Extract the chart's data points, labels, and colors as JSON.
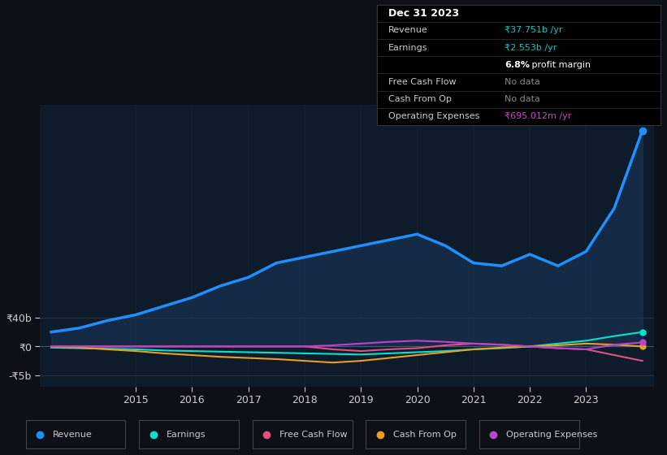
{
  "bg_color": "#0d1117",
  "plot_bg_color": "#0d1b2a",
  "grid_color": "#2a3a4a",
  "x_years": [
    2013.5,
    2014.0,
    2014.5,
    2015.0,
    2015.5,
    2016.0,
    2016.5,
    2017.0,
    2017.5,
    2018.0,
    2018.5,
    2019.0,
    2019.5,
    2020.0,
    2020.5,
    2021.0,
    2021.5,
    2022.0,
    2022.5,
    2023.0,
    2023.5,
    2024.0
  ],
  "revenue": [
    2.5,
    3.2,
    4.5,
    5.5,
    7.0,
    8.5,
    10.5,
    12.0,
    14.5,
    15.5,
    16.5,
    17.5,
    18.5,
    19.5,
    17.5,
    14.5,
    14.0,
    16.0,
    14.0,
    16.5,
    24.0,
    37.5
  ],
  "earnings": [
    -0.2,
    -0.3,
    -0.4,
    -0.5,
    -0.7,
    -0.8,
    -0.9,
    -1.0,
    -1.1,
    -1.2,
    -1.3,
    -1.4,
    -1.2,
    -1.0,
    -0.8,
    -0.5,
    -0.3,
    0.0,
    0.5,
    1.0,
    1.8,
    2.5
  ],
  "free_cash_flow": [
    0.0,
    0.0,
    0.0,
    0.0,
    0.0,
    0.0,
    0.0,
    0.0,
    0.0,
    0.0,
    -0.5,
    -0.8,
    -0.5,
    -0.3,
    0.2,
    0.5,
    0.3,
    0.0,
    -0.3,
    -0.5,
    -1.5,
    -2.5
  ],
  "cash_from_op": [
    -0.1,
    -0.2,
    -0.5,
    -0.8,
    -1.2,
    -1.5,
    -1.8,
    -2.0,
    -2.2,
    -2.5,
    -2.8,
    -2.5,
    -2.0,
    -1.5,
    -1.0,
    -0.5,
    -0.2,
    0.0,
    0.2,
    0.5,
    0.3,
    0.0
  ],
  "op_expenses": [
    0.0,
    0.0,
    0.0,
    0.0,
    0.0,
    0.0,
    0.0,
    0.0,
    0.0,
    0.0,
    0.2,
    0.5,
    0.8,
    1.0,
    0.8,
    0.5,
    0.3,
    0.0,
    -0.3,
    -0.5,
    0.3,
    0.7
  ],
  "revenue_color": "#1e90ff",
  "earnings_color": "#00e5cc",
  "fcf_color": "#e05080",
  "cfo_color": "#e8a020",
  "opex_color": "#bb44cc",
  "revenue_fill": "#1e3a5f",
  "ylim": [
    -7,
    42
  ],
  "xlim": [
    2013.3,
    2024.2
  ],
  "x_tick_years": [
    2015,
    2016,
    2017,
    2018,
    2019,
    2020,
    2021,
    2022,
    2023
  ],
  "legend_items": [
    {
      "label": "Revenue",
      "color": "#1e90ff"
    },
    {
      "label": "Earnings",
      "color": "#00e5cc"
    },
    {
      "label": "Free Cash Flow",
      "color": "#e05080"
    },
    {
      "label": "Cash From Op",
      "color": "#e8a020"
    },
    {
      "label": "Operating Expenses",
      "color": "#bb44cc"
    }
  ]
}
